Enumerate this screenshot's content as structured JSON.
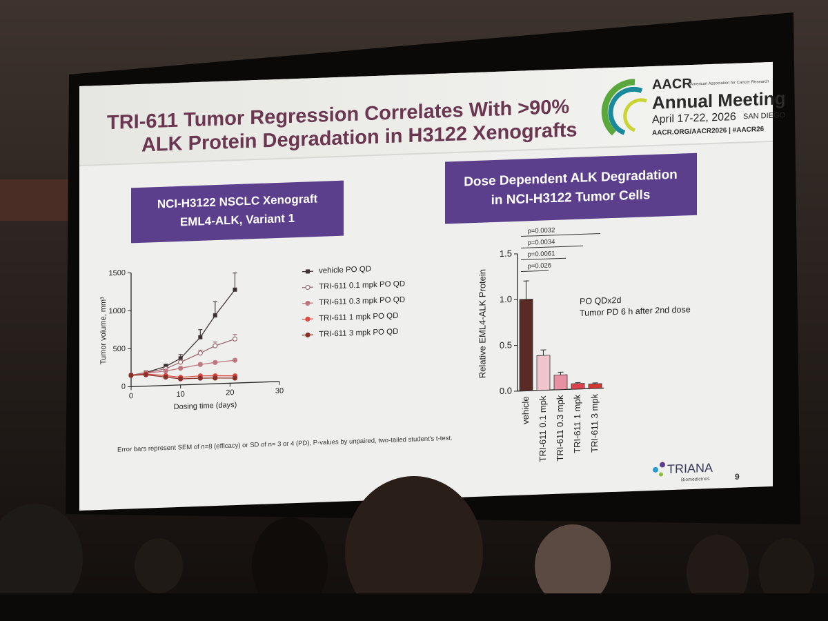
{
  "slide": {
    "title": [
      "TRI-611 Tumor Regression Correlates With >90%",
      "ALK Protein Degradation in H3122 Xenografts"
    ],
    "logo": {
      "brand": "AACR",
      "org": "American Association for Cancer Research",
      "event": "Annual Meeting",
      "dates": "April 17-22, 2026",
      "city": "SAN DIEGO",
      "url": "AACR.ORG/AACR2026 | #AACR26"
    },
    "left_box": [
      "NCI-H3122 NSCLC Xenograft",
      "EML4-ALK, Variant 1"
    ],
    "right_box": [
      "Dose Dependent ALK Degradation",
      "in NCI-H3122 Tumor Cells"
    ],
    "footnote": "Error bars represent SEM of n=8 (efficacy) or SD of n= 3 or 4 (PD), P-values by unpaired, two-tailed student's t-test.",
    "company": "TRIANA",
    "company_sub": "Biomedicines",
    "page": "9"
  },
  "chart_data": [
    {
      "type": "line",
      "xlabel": "Dosing time  (days)",
      "ylabel": "Tumor volume, mm³",
      "x": [
        0,
        3,
        7,
        10,
        14,
        17,
        21
      ],
      "series": [
        {
          "name": "vehicle PO QD",
          "color": "#3d3232",
          "marker": "square",
          "values": [
            150,
            180,
            250,
            350,
            620,
            900,
            1230
          ],
          "errors": [
            20,
            20,
            30,
            50,
            100,
            180,
            220
          ]
        },
        {
          "name": "TRI-611 0.1 mpk PO QD",
          "color": "#9a6a70",
          "marker": "open-circle",
          "values": [
            150,
            175,
            220,
            300,
            410,
            500,
            580
          ],
          "errors": [
            15,
            15,
            20,
            30,
            40,
            50,
            60
          ]
        },
        {
          "name": "TRI-611 0.3 mpk PO QD",
          "color": "#c07880",
          "marker": "circle",
          "values": [
            150,
            170,
            190,
            220,
            260,
            280,
            300
          ],
          "errors": [
            10,
            10,
            15,
            15,
            20,
            20,
            20
          ]
        },
        {
          "name": "TRI-611 1 mpk PO QD",
          "color": "#d84a40",
          "marker": "circle",
          "values": [
            150,
            160,
            130,
            100,
            110,
            105,
            95
          ],
          "errors": [
            10,
            10,
            10,
            10,
            10,
            10,
            10
          ]
        },
        {
          "name": "TRI-611 3 mpk PO QD",
          "color": "#8a3028",
          "marker": "circle",
          "values": [
            150,
            150,
            110,
            80,
            80,
            75,
            65
          ],
          "errors": [
            10,
            10,
            8,
            8,
            8,
            8,
            8
          ]
        }
      ],
      "xlim": [
        0,
        30
      ],
      "ylim": [
        0,
        1500
      ],
      "xticks": [
        0,
        10,
        20,
        30
      ],
      "yticks": [
        0,
        500,
        1000,
        1500
      ]
    },
    {
      "type": "bar",
      "ylabel": "Relative  EML4-ALK  Protein",
      "categories": [
        "vehicle",
        "TRI-611 0.1 mpk",
        "TRI-611 0.3 mpk",
        "TRI-611 1 mpk",
        "TRI-611 3 mpk"
      ],
      "values": [
        1.0,
        0.38,
        0.16,
        0.06,
        0.05
      ],
      "errors": [
        0.2,
        0.06,
        0.03,
        0.01,
        0.01
      ],
      "colors": [
        "#5a2a24",
        "#f0c4cc",
        "#e890a4",
        "#e0404c",
        "#d03a30"
      ],
      "ylim": [
        0,
        1.5
      ],
      "yticks": [
        {
          "value": 0,
          "label": "0.0"
        },
        0.5,
        {
          "value": 1,
          "label": "1.0"
        },
        1.5
      ],
      "p_values": [
        "p=0.026",
        "p=0.0061",
        "p=0.0034",
        "p=0.0032"
      ],
      "note": [
        "PO QDx2d",
        "Tumor PD 6 h after 2nd dose"
      ]
    }
  ]
}
